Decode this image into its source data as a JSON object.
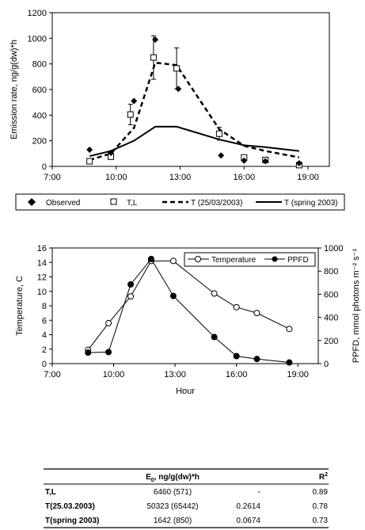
{
  "chart_data": [
    {
      "type": "line",
      "title": "",
      "xlabel": "",
      "ylabel": "Emission rate, ng/g(dw)*h",
      "xlim": [
        "7:00",
        "20:00"
      ],
      "ylim": [
        0,
        1200
      ],
      "xticks": [
        "7:00",
        "10:00",
        "13:00",
        "16:00",
        "19:00"
      ],
      "yticks": [
        "0",
        "200",
        "400",
        "600",
        "800",
        "1000",
        "1200"
      ],
      "legend_position": "bottom",
      "series": [
        {
          "name": "Observed",
          "style": "markers-diamond",
          "points": [
            {
              "x": "8:45",
              "y": 130
            },
            {
              "x": "9:45",
              "y": 105
            },
            {
              "x": "10:50",
              "y": 510
            },
            {
              "x": "11:50",
              "y": 990
            },
            {
              "x": "12:55",
              "y": 605
            },
            {
              "x": "14:55",
              "y": 85
            },
            {
              "x": "16:00",
              "y": 45
            },
            {
              "x": "17:00",
              "y": 40
            },
            {
              "x": "18:35",
              "y": 25
            }
          ]
        },
        {
          "name": "T,L",
          "style": "markers-square-errorbars",
          "points": [
            {
              "x": "8:45",
              "y": 40
            },
            {
              "x": "9:45",
              "y": 75
            },
            {
              "x": "10:40",
              "y": 405,
              "err": 80
            },
            {
              "x": "11:45",
              "y": 850,
              "err": 170
            },
            {
              "x": "12:50",
              "y": 765,
              "err": 160
            },
            {
              "x": "14:50",
              "y": 255,
              "err": 50
            },
            {
              "x": "16:00",
              "y": 70
            },
            {
              "x": "17:00",
              "y": 50
            },
            {
              "x": "18:35",
              "y": 10
            }
          ]
        },
        {
          "name": "T (25/03/2003)",
          "style": "dashed",
          "points": [
            {
              "x": "8:45",
              "y": 50
            },
            {
              "x": "9:45",
              "y": 100
            },
            {
              "x": "10:50",
              "y": 300
            },
            {
              "x": "11:50",
              "y": 810
            },
            {
              "x": "12:50",
              "y": 790
            },
            {
              "x": "14:50",
              "y": 290
            },
            {
              "x": "16:00",
              "y": 160
            },
            {
              "x": "17:00",
              "y": 120
            },
            {
              "x": "18:35",
              "y": 70
            }
          ]
        },
        {
          "name": "T (spring 2003)",
          "style": "solid",
          "points": [
            {
              "x": "8:45",
              "y": 80
            },
            {
              "x": "9:45",
              "y": 120
            },
            {
              "x": "10:50",
              "y": 200
            },
            {
              "x": "11:50",
              "y": 310
            },
            {
              "x": "12:50",
              "y": 310
            },
            {
              "x": "14:50",
              "y": 210
            },
            {
              "x": "16:00",
              "y": 165
            },
            {
              "x": "17:00",
              "y": 150
            },
            {
              "x": "18:35",
              "y": 120
            }
          ]
        }
      ]
    },
    {
      "type": "line",
      "title": "",
      "xlabel": "Hour",
      "ylabel": "Temperature, C",
      "y2label": "PPFD, mmol photons m⁻² s⁻¹",
      "xlim": [
        "7:00",
        "20:00"
      ],
      "ylim": [
        0,
        16
      ],
      "y2lim": [
        0,
        1000
      ],
      "xticks": [
        "7:00",
        "10:00",
        "13:00",
        "16:00",
        "19:00"
      ],
      "yticks": [
        "0",
        "2",
        "4",
        "6",
        "8",
        "10",
        "12",
        "14",
        "16"
      ],
      "y2ticks": [
        "0",
        "200",
        "400",
        "600",
        "800",
        "1000"
      ],
      "legend_position": "top-right",
      "series": [
        {
          "name": "Temperature",
          "axis": "left",
          "style": "open-circle",
          "points": [
            {
              "x": "8:45",
              "y": 1.9
            },
            {
              "x": "9:45",
              "y": 5.6
            },
            {
              "x": "10:50",
              "y": 9.3
            },
            {
              "x": "11:50",
              "y": 14.2
            },
            {
              "x": "12:55",
              "y": 14.2
            },
            {
              "x": "14:55",
              "y": 9.7
            },
            {
              "x": "16:00",
              "y": 7.8
            },
            {
              "x": "17:00",
              "y": 7.0
            },
            {
              "x": "18:35",
              "y": 4.8
            }
          ]
        },
        {
          "name": "PPFD",
          "axis": "right",
          "style": "filled-circle",
          "points": [
            {
              "x": "8:45",
              "y": 95
            },
            {
              "x": "9:45",
              "y": 100
            },
            {
              "x": "10:50",
              "y": 685
            },
            {
              "x": "11:50",
              "y": 905
            },
            {
              "x": "12:55",
              "y": 585
            },
            {
              "x": "14:55",
              "y": 230
            },
            {
              "x": "16:00",
              "y": 65
            },
            {
              "x": "17:00",
              "y": 40
            },
            {
              "x": "18:35",
              "y": 10
            }
          ]
        }
      ]
    }
  ],
  "table": {
    "col_header": "ng/g(dw)*h",
    "col_header_symbol": "E",
    "col_header_subscript": "0",
    "r2_header": "R",
    "r2_header_sup": "2",
    "rows": [
      {
        "label": "T,L",
        "e0": "6460 (571)",
        "beta": "-",
        "r2": "0.89"
      },
      {
        "label": "T(25.03.2003)",
        "e0": "50323 (65442)",
        "beta": "0.2614",
        "r2": "0.78"
      },
      {
        "label": "T(spring 2003)",
        "e0": "1642 (850)",
        "beta": "0.0674",
        "r2": "0.73"
      }
    ]
  }
}
